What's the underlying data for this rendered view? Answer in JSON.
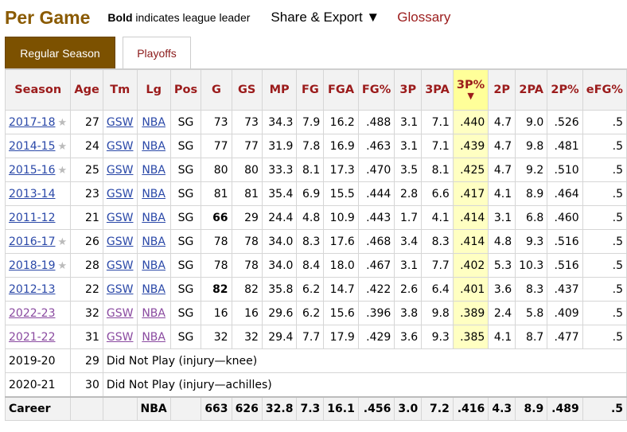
{
  "header": {
    "title": "Per Game",
    "legend_bold": "Bold",
    "legend_rest": "indicates league leader",
    "share_label": "Share & Export ▼",
    "glossary_label": "Glossary"
  },
  "tabs": [
    {
      "label": "Regular Season",
      "active": true
    },
    {
      "label": "Playoffs",
      "active": false
    }
  ],
  "table": {
    "columns": [
      "Season",
      "Age",
      "Tm",
      "Lg",
      "Pos",
      "G",
      "GS",
      "MP",
      "FG",
      "FGA",
      "FG%",
      "3P",
      "3PA",
      "3P%",
      "2P",
      "2PA",
      "2P%",
      "eFG%"
    ],
    "sorted_column": "3P%",
    "sort_arrow": "▼",
    "rows": [
      {
        "season": "2017-18",
        "allstar": true,
        "age": "27",
        "tm": "GSW",
        "lg": "NBA",
        "pos": "SG",
        "g": "73",
        "gs": "73",
        "mp": "34.3",
        "fg": "7.9",
        "fga": "16.2",
        "fgp": ".488",
        "p3": "3.1",
        "pa3": "7.1",
        "pp3": ".440",
        "p2": "4.7",
        "pa2": "9.0",
        "pp2": ".526",
        "efg": ".5",
        "visited": false,
        "bold_g": false
      },
      {
        "season": "2014-15",
        "allstar": true,
        "age": "24",
        "tm": "GSW",
        "lg": "NBA",
        "pos": "SG",
        "g": "77",
        "gs": "77",
        "mp": "31.9",
        "fg": "7.8",
        "fga": "16.9",
        "fgp": ".463",
        "p3": "3.1",
        "pa3": "7.1",
        "pp3": ".439",
        "p2": "4.7",
        "pa2": "9.8",
        "pp2": ".481",
        "efg": ".5",
        "visited": false,
        "bold_g": false
      },
      {
        "season": "2015-16",
        "allstar": true,
        "age": "25",
        "tm": "GSW",
        "lg": "NBA",
        "pos": "SG",
        "g": "80",
        "gs": "80",
        "mp": "33.3",
        "fg": "8.1",
        "fga": "17.3",
        "fgp": ".470",
        "p3": "3.5",
        "pa3": "8.1",
        "pp3": ".425",
        "p2": "4.7",
        "pa2": "9.2",
        "pp2": ".510",
        "efg": ".5",
        "visited": false,
        "bold_g": false
      },
      {
        "season": "2013-14",
        "allstar": false,
        "age": "23",
        "tm": "GSW",
        "lg": "NBA",
        "pos": "SG",
        "g": "81",
        "gs": "81",
        "mp": "35.4",
        "fg": "6.9",
        "fga": "15.5",
        "fgp": ".444",
        "p3": "2.8",
        "pa3": "6.6",
        "pp3": ".417",
        "p2": "4.1",
        "pa2": "8.9",
        "pp2": ".464",
        "efg": ".5",
        "visited": false,
        "bold_g": false
      },
      {
        "season": "2011-12",
        "allstar": false,
        "age": "21",
        "tm": "GSW",
        "lg": "NBA",
        "pos": "SG",
        "g": "66",
        "gs": "29",
        "mp": "24.4",
        "fg": "4.8",
        "fga": "10.9",
        "fgp": ".443",
        "p3": "1.7",
        "pa3": "4.1",
        "pp3": ".414",
        "p2": "3.1",
        "pa2": "6.8",
        "pp2": ".460",
        "efg": ".5",
        "visited": false,
        "bold_g": true
      },
      {
        "season": "2016-17",
        "allstar": true,
        "age": "26",
        "tm": "GSW",
        "lg": "NBA",
        "pos": "SG",
        "g": "78",
        "gs": "78",
        "mp": "34.0",
        "fg": "8.3",
        "fga": "17.6",
        "fgp": ".468",
        "p3": "3.4",
        "pa3": "8.3",
        "pp3": ".414",
        "p2": "4.8",
        "pa2": "9.3",
        "pp2": ".516",
        "efg": ".5",
        "visited": false,
        "bold_g": false
      },
      {
        "season": "2018-19",
        "allstar": true,
        "age": "28",
        "tm": "GSW",
        "lg": "NBA",
        "pos": "SG",
        "g": "78",
        "gs": "78",
        "mp": "34.0",
        "fg": "8.4",
        "fga": "18.0",
        "fgp": ".467",
        "p3": "3.1",
        "pa3": "7.7",
        "pp3": ".402",
        "p2": "5.3",
        "pa2": "10.3",
        "pp2": ".516",
        "efg": ".5",
        "visited": false,
        "bold_g": false
      },
      {
        "season": "2012-13",
        "allstar": false,
        "age": "22",
        "tm": "GSW",
        "lg": "NBA",
        "pos": "SG",
        "g": "82",
        "gs": "82",
        "mp": "35.8",
        "fg": "6.2",
        "fga": "14.7",
        "fgp": ".422",
        "p3": "2.6",
        "pa3": "6.4",
        "pp3": ".401",
        "p2": "3.6",
        "pa2": "8.3",
        "pp2": ".437",
        "efg": ".5",
        "visited": false,
        "bold_g": true
      },
      {
        "season": "2022-23",
        "allstar": false,
        "age": "32",
        "tm": "GSW",
        "lg": "NBA",
        "pos": "SG",
        "g": "16",
        "gs": "16",
        "mp": "29.6",
        "fg": "6.2",
        "fga": "15.6",
        "fgp": ".396",
        "p3": "3.8",
        "pa3": "9.8",
        "pp3": ".389",
        "p2": "2.4",
        "pa2": "5.8",
        "pp2": ".409",
        "efg": ".5",
        "visited": true,
        "bold_g": false
      },
      {
        "season": "2021-22",
        "allstar": false,
        "age": "31",
        "tm": "GSW",
        "lg": "NBA",
        "pos": "SG",
        "g": "32",
        "gs": "32",
        "mp": "29.4",
        "fg": "7.7",
        "fga": "17.9",
        "fgp": ".429",
        "p3": "3.6",
        "pa3": "9.3",
        "pp3": ".385",
        "p2": "4.1",
        "pa2": "8.7",
        "pp2": ".477",
        "efg": ".5",
        "visited": true,
        "bold_g": false
      }
    ],
    "dnp_rows": [
      {
        "season": "2019-20",
        "age": "29",
        "note": "Did Not Play (injury—knee)"
      },
      {
        "season": "2020-21",
        "age": "30",
        "note": "Did Not Play (injury—achilles)"
      }
    ],
    "career": {
      "label": "Career",
      "lg": "NBA",
      "g": "663",
      "gs": "626",
      "mp": "32.8",
      "fg": "7.3",
      "fga": "16.1",
      "fgp": ".456",
      "p3": "3.0",
      "pa3": "7.2",
      "pp3": ".416",
      "p2": "4.3",
      "pa2": "8.9",
      "pp2": ".489",
      "efg": ".5"
    }
  }
}
